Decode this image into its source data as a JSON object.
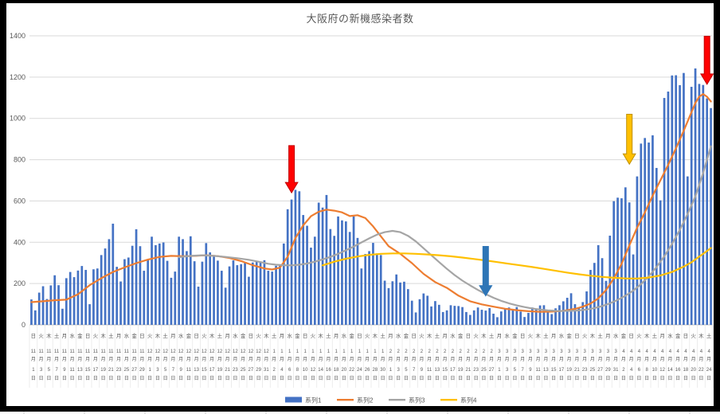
{
  "window": {
    "border_color": "#000000",
    "background": "#ffffff"
  },
  "chart_data": {
    "type": "combo",
    "title": "大阪府の新機感染者数",
    "start_date": "2020-11-01",
    "months": [
      {
        "month": 11,
        "days": 30
      },
      {
        "month": 12,
        "days": 31
      },
      {
        "month": 1,
        "days": 31
      },
      {
        "month": 2,
        "days": 28
      },
      {
        "month": 3,
        "days": 31
      },
      {
        "month": 4,
        "days": 25
      }
    ],
    "weekday_chars": "日月火水木金土",
    "start_weekday_index": 0,
    "month_suffix": "月",
    "day_suffix": "日",
    "x_tick_every_days": 2,
    "y_axis": {
      "min": 0,
      "max": 1400,
      "step": 200,
      "ticks": [
        0,
        200,
        400,
        600,
        800,
        1000,
        1200,
        1400
      ]
    },
    "grid": true,
    "legend_position": "bottom",
    "series": [
      {
        "name": "系列1",
        "type": "bar",
        "color": "#4472C4",
        "values": [
          123,
          70,
          156,
          187,
          125,
          191,
          240,
          192,
          78,
          226,
          256,
          231,
          263,
          285,
          266,
          100,
          269,
          273,
          338,
          370,
          415,
          490,
          281,
          210,
          318,
          326,
          383,
          463,
          381,
          262,
          318,
          427,
          386,
          394,
          399,
          310,
          228,
          258,
          427,
          415,
          357,
          429,
          308,
          185,
          306,
          396,
          351,
          330,
          311,
          262,
          180,
          283,
          312,
          289,
          294,
          299,
          233,
          302,
          307,
          307,
          313,
          262,
          258,
          286,
          286,
          394,
          560,
          607,
          654,
          647,
          532,
          480,
          374,
          427,
          592,
          568,
          629,
          464,
          431,
          525,
          506,
          501,
          450,
          525,
          421,
          273,
          343,
          357,
          397,
          346,
          338,
          214,
          178,
          211,
          244,
          205,
          209,
          173,
          117,
          60,
          124,
          152,
          141,
          89,
          115,
          97,
          62,
          70,
          95,
          92,
          91,
          86,
          62,
          48,
          70,
          84,
          73,
          69,
          81,
          54,
          37,
          65,
          81,
          84,
          72,
          86,
          64,
          38,
          58,
          84,
          74,
          94,
          95,
          72,
          52,
          80,
          95,
          114,
          131,
          153,
          100,
          79,
          110,
          162,
          266,
          300,
          386,
          323,
          213,
          432,
          599,
          616,
          613,
          666,
          593,
          341,
          719,
          878,
          905,
          883,
          918,
          760,
          603,
          1099,
          1130,
          1208,
          1209,
          1161,
          1220,
          719,
          1153,
          1242,
          1167,
          1162,
          1097,
          1050
        ]
      },
      {
        "name": "系列2",
        "type": "line",
        "color": "#ED7D31",
        "points": [
          [
            0,
            110
          ],
          [
            3,
            114
          ],
          [
            6,
            119
          ],
          [
            9,
            122
          ],
          [
            12,
            148
          ],
          [
            15,
            192
          ],
          [
            18,
            226
          ],
          [
            21,
            256
          ],
          [
            24,
            278
          ],
          [
            27,
            299
          ],
          [
            30,
            316
          ],
          [
            33,
            329
          ],
          [
            36,
            334
          ],
          [
            39,
            332
          ],
          [
            42,
            334
          ],
          [
            45,
            337
          ],
          [
            48,
            333
          ],
          [
            51,
            324
          ],
          [
            54,
            309
          ],
          [
            57,
            289
          ],
          [
            60,
            273
          ],
          [
            62,
            268
          ],
          [
            64,
            277
          ],
          [
            66,
            330
          ],
          [
            68,
            420
          ],
          [
            70,
            482
          ],
          [
            72,
            526
          ],
          [
            74,
            548
          ],
          [
            76,
            558
          ],
          [
            78,
            553
          ],
          [
            80,
            545
          ],
          [
            82,
            527
          ],
          [
            84,
            531
          ],
          [
            86,
            517
          ],
          [
            88,
            477
          ],
          [
            90,
            429
          ],
          [
            92,
            381
          ],
          [
            95,
            344
          ],
          [
            98,
            299
          ],
          [
            101,
            247
          ],
          [
            104,
            207
          ],
          [
            107,
            179
          ],
          [
            110,
            141
          ],
          [
            113,
            114
          ],
          [
            116,
            99
          ],
          [
            119,
            88
          ],
          [
            122,
            78
          ],
          [
            125,
            71
          ],
          [
            128,
            66
          ],
          [
            131,
            63
          ],
          [
            134,
            64
          ],
          [
            137,
            68
          ],
          [
            140,
            77
          ],
          [
            142,
            88
          ],
          [
            144,
            103
          ],
          [
            146,
            128
          ],
          [
            148,
            168
          ],
          [
            150,
            225
          ],
          [
            152,
            295
          ],
          [
            154,
            385
          ],
          [
            156,
            470
          ],
          [
            158,
            545
          ],
          [
            160,
            625
          ],
          [
            162,
            700
          ],
          [
            164,
            775
          ],
          [
            166,
            855
          ],
          [
            168,
            940
          ],
          [
            170,
            1030
          ],
          [
            171,
            1075
          ],
          [
            172,
            1105
          ],
          [
            173,
            1118
          ],
          [
            174,
            1105
          ],
          [
            175,
            1082
          ]
        ]
      },
      {
        "name": "系列3",
        "type": "line",
        "color": "#A5A5A5",
        "points": [
          [
            38,
            328
          ],
          [
            41,
            334
          ],
          [
            44,
            337
          ],
          [
            47,
            334
          ],
          [
            50,
            329
          ],
          [
            53,
            323
          ],
          [
            56,
            315
          ],
          [
            59,
            304
          ],
          [
            61,
            296
          ],
          [
            63,
            291
          ],
          [
            65,
            289
          ],
          [
            67,
            288
          ],
          [
            69,
            291
          ],
          [
            71,
            297
          ],
          [
            73,
            306
          ],
          [
            75,
            317
          ],
          [
            77,
            329
          ],
          [
            79,
            344
          ],
          [
            81,
            361
          ],
          [
            83,
            379
          ],
          [
            85,
            399
          ],
          [
            87,
            419
          ],
          [
            89,
            437
          ],
          [
            91,
            449
          ],
          [
            93,
            455
          ],
          [
            95,
            449
          ],
          [
            97,
            431
          ],
          [
            99,
            404
          ],
          [
            101,
            371
          ],
          [
            103,
            337
          ],
          [
            105,
            304
          ],
          [
            107,
            271
          ],
          [
            109,
            241
          ],
          [
            111,
            214
          ],
          [
            113,
            191
          ],
          [
            115,
            169
          ],
          [
            117,
            149
          ],
          [
            119,
            131
          ],
          [
            121,
            116
          ],
          [
            123,
            104
          ],
          [
            125,
            94
          ],
          [
            127,
            86
          ],
          [
            129,
            79
          ],
          [
            131,
            74
          ],
          [
            133,
            70
          ],
          [
            135,
            68
          ],
          [
            137,
            67
          ],
          [
            139,
            68
          ],
          [
            141,
            70
          ],
          [
            143,
            74
          ],
          [
            145,
            81
          ],
          [
            147,
            91
          ],
          [
            149,
            104
          ],
          [
            151,
            121
          ],
          [
            153,
            141
          ],
          [
            155,
            166
          ],
          [
            157,
            197
          ],
          [
            159,
            235
          ],
          [
            161,
            280
          ],
          [
            163,
            332
          ],
          [
            165,
            392
          ],
          [
            167,
            460
          ],
          [
            169,
            537
          ],
          [
            171,
            622
          ],
          [
            173,
            735
          ],
          [
            174,
            800
          ],
          [
            175,
            865
          ]
        ]
      },
      {
        "name": "系列4",
        "type": "line",
        "color": "#FFC000",
        "points": [
          [
            75,
            288
          ],
          [
            78,
            306
          ],
          [
            81,
            320
          ],
          [
            84,
            331
          ],
          [
            87,
            339
          ],
          [
            90,
            344
          ],
          [
            93,
            346
          ],
          [
            96,
            346
          ],
          [
            99,
            344
          ],
          [
            102,
            341
          ],
          [
            105,
            337
          ],
          [
            108,
            332
          ],
          [
            111,
            326
          ],
          [
            114,
            319
          ],
          [
            117,
            312
          ],
          [
            120,
            304
          ],
          [
            123,
            296
          ],
          [
            126,
            288
          ],
          [
            129,
            280
          ],
          [
            132,
            271
          ],
          [
            135,
            262
          ],
          [
            138,
            253
          ],
          [
            141,
            245
          ],
          [
            144,
            238
          ],
          [
            147,
            232
          ],
          [
            150,
            228
          ],
          [
            153,
            225
          ],
          [
            156,
            224
          ],
          [
            159,
            229
          ],
          [
            162,
            239
          ],
          [
            165,
            256
          ],
          [
            168,
            282
          ],
          [
            170,
            303
          ],
          [
            172,
            330
          ],
          [
            174,
            358
          ],
          [
            175,
            372
          ]
        ]
      }
    ],
    "annotations": [
      {
        "name": "red-arrow-1",
        "shape": "down-arrow",
        "fill": "#FF0000",
        "stroke": "#C00000",
        "day_index": 67,
        "value_top": 868,
        "value_tip": 640
      },
      {
        "name": "blue-arrow",
        "shape": "down-arrow",
        "fill": "#2E75B6",
        "stroke": "#2E75B6",
        "day_index": 117,
        "value_top": 380,
        "value_tip": 140
      },
      {
        "name": "yellow-arrow",
        "shape": "down-arrow",
        "fill": "#FFC000",
        "stroke": "#BF9000",
        "day_index": 154,
        "value_top": 1020,
        "value_tip": 778
      },
      {
        "name": "red-arrow-2",
        "shape": "down-arrow",
        "fill": "#FF0000",
        "stroke": "#C00000",
        "day_index": 174,
        "value_top": 1398,
        "value_tip": 1165
      }
    ],
    "colors": {
      "gridline": "#D9D9D9",
      "axis_line": "#BFBFBF",
      "label_text": "#595959",
      "tick_separator": "#E8E8E8"
    }
  }
}
